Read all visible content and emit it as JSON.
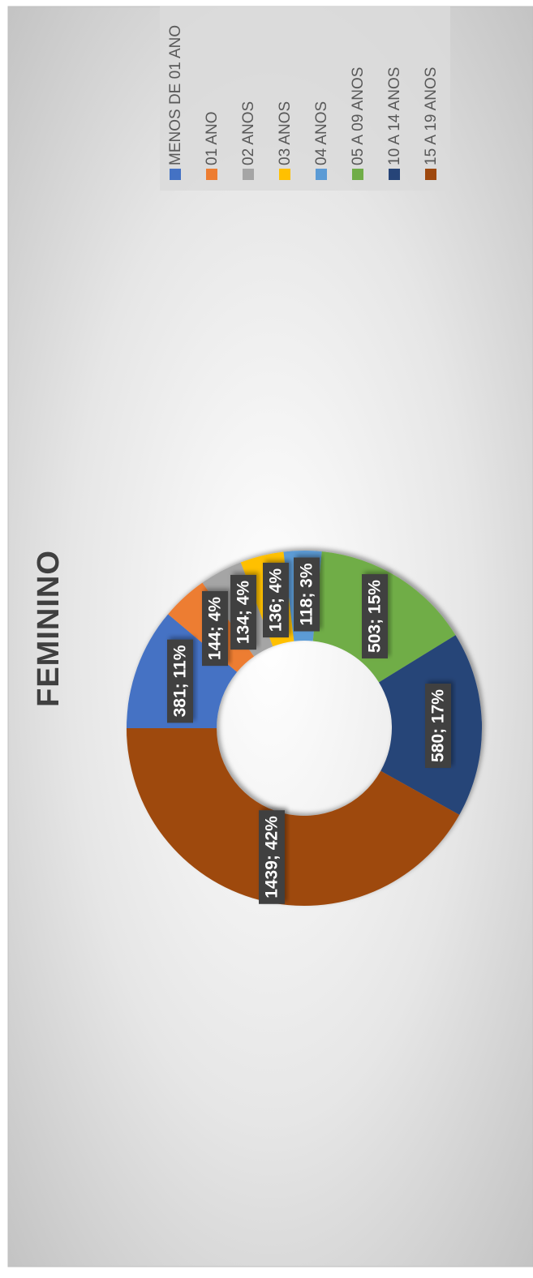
{
  "chart_data": {
    "type": "donut",
    "title": "FEMININO",
    "categories": [
      "MENOS DE 01 ANO",
      "01 ANO",
      "02 ANOS",
      "03 ANOS",
      "04 ANOS",
      "05 A 09 ANOS",
      "10 A 14 ANOS",
      "15 A 19 ANOS"
    ],
    "values": [
      381,
      144,
      134,
      136,
      118,
      503,
      580,
      1439
    ],
    "value_labels": [
      "381; 11%",
      "144; 4%",
      "134; 4%",
      "136; 4%",
      "118; 3%",
      "503; 15%",
      "580; 17%",
      "1439; 42%"
    ],
    "colors": [
      "#4472c4",
      "#ed7d31",
      "#a5a5a5",
      "#ffc000",
      "#5b9bd5",
      "#70ad47",
      "#264478",
      "#9e480e"
    ],
    "legend": "right"
  }
}
